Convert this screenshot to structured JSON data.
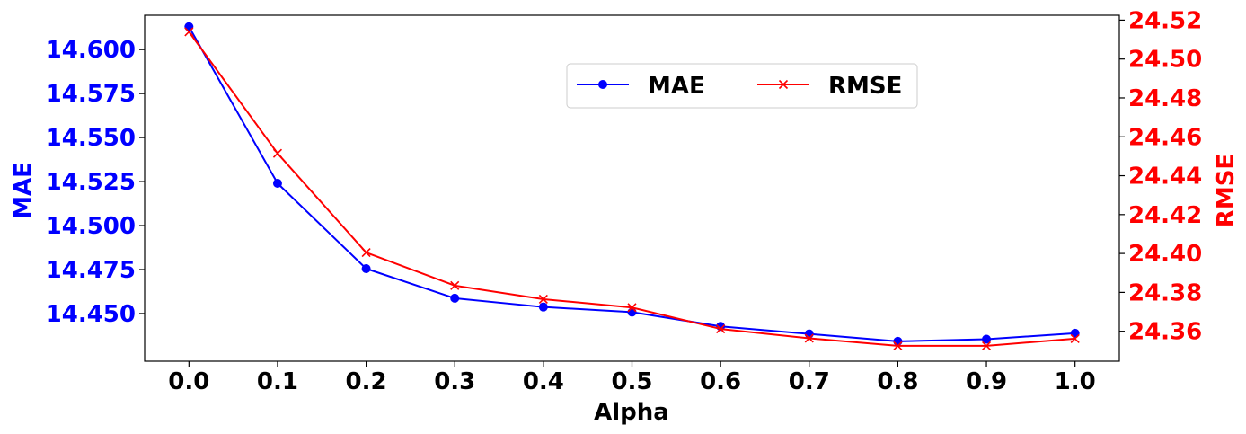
{
  "chart_data": {
    "type": "line",
    "x": [
      0.0,
      0.1,
      0.2,
      0.3,
      0.4,
      0.5,
      0.6,
      0.7,
      0.8,
      0.9,
      1.0
    ],
    "x_tick_labels": [
      "0.0",
      "0.1",
      "0.2",
      "0.3",
      "0.4",
      "0.5",
      "0.6",
      "0.7",
      "0.8",
      "0.9",
      "1.0"
    ],
    "xlabel": "Alpha",
    "xlim": [
      -0.05,
      1.05
    ],
    "series": [
      {
        "name": "MAE",
        "axis": "left",
        "color": "#0000ff",
        "marker": "circle",
        "values": [
          14.613,
          14.524,
          14.4755,
          14.4587,
          14.4537,
          14.4508,
          14.4427,
          14.4384,
          14.4342,
          14.4354,
          14.4388
        ]
      },
      {
        "name": "RMSE",
        "axis": "right",
        "color": "#ff0000",
        "marker": "x",
        "values": [
          24.514,
          24.4515,
          24.4005,
          24.3835,
          24.3765,
          24.3722,
          24.3612,
          24.3564,
          24.3525,
          24.3525,
          24.3562
        ]
      }
    ],
    "y_left": {
      "label": "MAE",
      "color": "#0000ff",
      "ylim": [
        14.4229,
        14.6195
      ],
      "tick_values": [
        14.45,
        14.475,
        14.5,
        14.525,
        14.55,
        14.575,
        14.6
      ],
      "tick_labels": [
        "14.450",
        "14.475",
        "14.500",
        "14.525",
        "14.550",
        "14.575",
        "14.600"
      ]
    },
    "y_right": {
      "label": "RMSE",
      "color": "#ff0000",
      "ylim": [
        24.3446,
        24.5225
      ],
      "tick_values": [
        24.36,
        24.38,
        24.4,
        24.42,
        24.44,
        24.46,
        24.48,
        24.5,
        24.52
      ],
      "tick_labels": [
        "24.36",
        "24.38",
        "24.40",
        "24.42",
        "24.44",
        "24.46",
        "24.48",
        "24.50",
        "24.52"
      ]
    },
    "legend": {
      "placement": "upper-center",
      "columns": 2
    },
    "grid": false
  }
}
